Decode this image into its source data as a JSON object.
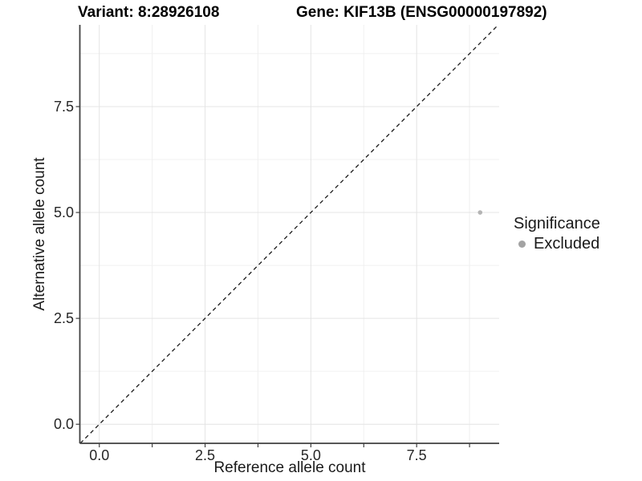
{
  "figure": {
    "title_left": "Variant: 8:28926108",
    "title_right": "Gene: KIF13B (ENSG00000197892)",
    "x_axis": {
      "label": "Reference allele count",
      "tick_labels": [
        "0.0",
        "2.5",
        "5.0",
        "7.5"
      ]
    },
    "y_axis": {
      "label": "Alternative allele count",
      "tick_labels": [
        "0.0",
        "2.5",
        "5.0",
        "7.5"
      ]
    },
    "legend": {
      "title": "Significance",
      "items": [
        {
          "label": "Excluded",
          "color": "#a3a3a3"
        }
      ]
    }
  },
  "chart_data": {
    "type": "scatter",
    "title": "Variant: 8:28926108   Gene: KIF13B (ENSG00000197892)",
    "xlabel": "Reference allele count",
    "ylabel": "Alternative allele count",
    "xlim": [
      -0.46,
      9.45
    ],
    "ylim": [
      -0.45,
      9.43
    ],
    "x_breaks": [
      0,
      2.5,
      5,
      7.5
    ],
    "y_breaks": [
      0,
      2.5,
      5,
      7.5
    ],
    "x_minor_breaks": [
      1.25,
      3.75,
      6.25,
      8.75
    ],
    "y_minor_breaks": [
      1.25,
      3.75,
      6.25,
      8.75
    ],
    "grid": true,
    "legend_position": "right",
    "series": [
      {
        "name": "Excluded",
        "color": "#b4b4b4",
        "points": [
          {
            "x": 9,
            "y": 5
          }
        ]
      }
    ],
    "reference_line": {
      "kind": "identity",
      "equation": "y = x",
      "style": "dashed",
      "color": "#1a1a1a"
    }
  },
  "colors": {
    "background": "#ffffff",
    "axis_line": "#404040",
    "grid_major": "#e4e4e4",
    "grid_minor": "#f0f0f0",
    "point": "#b4b4b4",
    "legend_key": "#a3a3a3"
  }
}
